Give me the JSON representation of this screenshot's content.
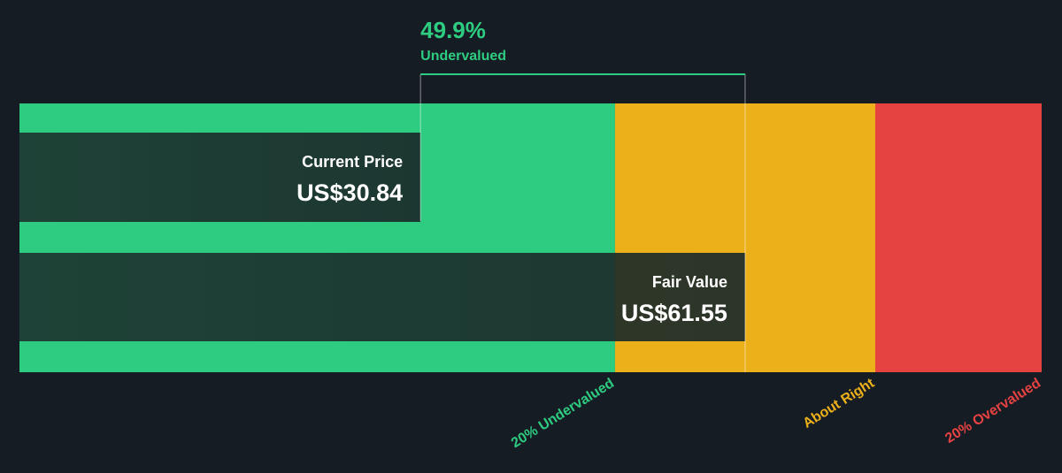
{
  "chart_data": {
    "type": "valuation",
    "xlim": [
      -7.1,
      89.6
    ],
    "discount": {
      "value": 49.9,
      "label": "49.9%",
      "text": "Undervalued",
      "color": "#2ecc80"
    },
    "series": [
      {
        "name": "Current Price",
        "value": 30.84,
        "value_label": "US$30.84"
      },
      {
        "name": "Fair Value",
        "value": 61.55,
        "value_label": "US$61.55"
      }
    ],
    "zones": [
      {
        "name": "20% Undervalued",
        "color": "#2ecc80",
        "end": 49.24
      },
      {
        "name": "About Right",
        "color": "#ecb01a",
        "end": 73.86
      },
      {
        "name": "20% Overvalued",
        "color": "#e54242",
        "end": 89.6
      }
    ]
  }
}
